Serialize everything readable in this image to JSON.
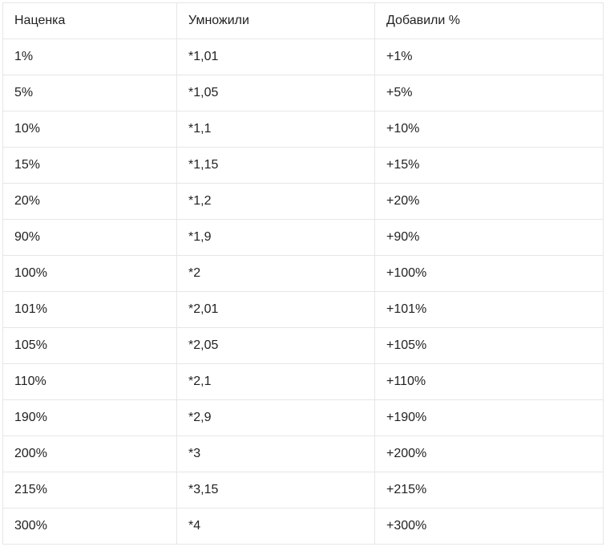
{
  "table": {
    "headers": [
      "Наценка",
      "Умножили",
      "Добавили %"
    ],
    "rows": [
      [
        "1%",
        "*1,01",
        "+1%"
      ],
      [
        "5%",
        "*1,05",
        "+5%"
      ],
      [
        "10%",
        "*1,1",
        "+10%"
      ],
      [
        "15%",
        "*1,15",
        "+15%"
      ],
      [
        "20%",
        "*1,2",
        "+20%"
      ],
      [
        "90%",
        "*1,9",
        "+90%"
      ],
      [
        "100%",
        "*2",
        "+100%"
      ],
      [
        "101%",
        "*2,01",
        "+101%"
      ],
      [
        "105%",
        "*2,05",
        "+105%"
      ],
      [
        "110%",
        "*2,1",
        "+110%"
      ],
      [
        "190%",
        "*2,9",
        "+190%"
      ],
      [
        "200%",
        "*3",
        "+200%"
      ],
      [
        "215%",
        "*3,15",
        "+215%"
      ],
      [
        "300%",
        "*4",
        "+300%"
      ]
    ]
  }
}
